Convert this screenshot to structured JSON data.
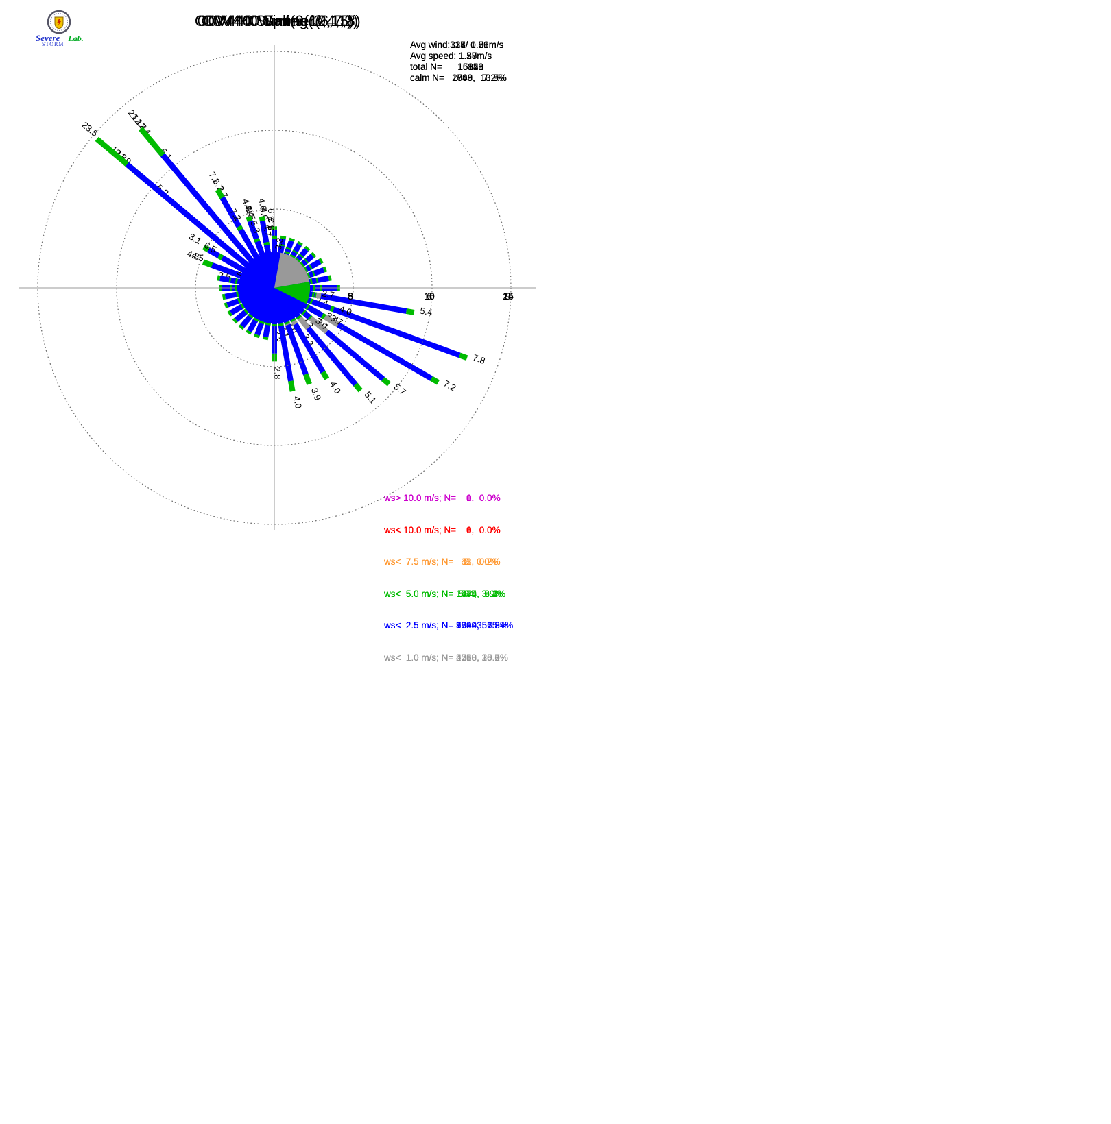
{
  "logo": {
    "name1": "Severe",
    "name2": "STORM",
    "name3": "Lab."
  },
  "colors": {
    "gt10": "#cc00cc",
    "lt10": "#ff0000",
    "lt75": "#ff9933",
    "lt5": "#00bb00",
    "lt25": "#0000ff",
    "lt1": "#999999",
    "axis": "#999999",
    "ring": "#777777"
  },
  "petal_columns": [
    "direction_deg",
    "len_ws_lt_1.0",
    "len_ws_lt_2.5",
    "len_ws_lt_5.0",
    "label_total_pct"
  ],
  "chart_data": [
    {
      "type": "windrose",
      "title": "C0V440 Spring(3,4,5)",
      "stats": {
        "avg_wind": "Avg wind:315/ 0.56m/s",
        "avg_speed": "Avg speed: 1.39m/s",
        "total_n": "total N=      16821",
        "calm_n": "calm N=   1769,  10.5%"
      },
      "axis_ticks": [
        5,
        10,
        15
      ],
      "axis_max": 15,
      "legend": [
        {
          "text": "ws> 10.0 m/s; N=    0,  0.0%",
          "color": "#cc00cc"
        },
        {
          "text": "ws< 10.0 m/s; N=    0,  0.0%",
          "color": "#ff0000"
        },
        {
          "text": "ws<  7.5 m/s; N=    5,  0.0%",
          "color": "#ff9933"
        },
        {
          "text": "ws<  5.0 m/s; N= 1039,  6.2%",
          "color": "#00bb00"
        },
        {
          "text": "ws<  2.5 m/s; N= 9740, 57.9%",
          "color": "#0000ff"
        },
        {
          "text": "ws<  1.0 m/s; N= 4268, 25.4%",
          "color": "#999999"
        }
      ],
      "category_pct": {
        "gray": 25.4,
        "blue": 57.9,
        "green": 6.2,
        "orange": 0.0
      },
      "petals": [
        [
          0,
          1.7,
          1.4,
          0.2,
          "3.3"
        ],
        [
          10,
          2.0,
          0.7,
          0.1,
          ""
        ],
        [
          20,
          2.0,
          0.6,
          0.1,
          ""
        ],
        [
          30,
          2.0,
          0.6,
          0.1,
          ""
        ],
        [
          40,
          2.0,
          0.6,
          0.1,
          ""
        ],
        [
          50,
          2.0,
          0.6,
          0.1,
          ""
        ],
        [
          60,
          2.0,
          0.6,
          0.1,
          ""
        ],
        [
          70,
          2.0,
          0.7,
          0.1,
          ""
        ],
        [
          80,
          2.0,
          0.8,
          0.1,
          ""
        ],
        [
          90,
          2.0,
          0.9,
          0.1,
          ""
        ],
        [
          100,
          2.0,
          0.9,
          0.1,
          ""
        ],
        [
          110,
          1.8,
          0.5,
          0.1,
          "2.4"
        ],
        [
          120,
          1.8,
          1.4,
          0.2,
          "3.4"
        ],
        [
          130,
          1.8,
          1.1,
          0.2,
          "3.1"
        ],
        [
          140,
          1.8,
          0.4,
          0.1,
          "2.3"
        ],
        [
          150,
          1.8,
          1.2,
          0.2,
          "3.2"
        ],
        [
          160,
          1.6,
          0.3,
          0.1,
          "2.0"
        ],
        [
          170,
          1.7,
          0.3,
          0.1,
          "2.1"
        ],
        [
          180,
          1.8,
          0.4,
          0.1,
          "2.3"
        ],
        [
          190,
          1.8,
          0.4,
          0.1,
          ""
        ],
        [
          200,
          1.8,
          0.3,
          0.1,
          ""
        ],
        [
          210,
          1.8,
          0.3,
          0.1,
          ""
        ],
        [
          220,
          1.8,
          0.3,
          0.1,
          ""
        ],
        [
          230,
          1.8,
          0.3,
          0.1,
          ""
        ],
        [
          240,
          1.8,
          0.3,
          0.1,
          ""
        ],
        [
          250,
          1.8,
          0.3,
          0.1,
          ""
        ],
        [
          260,
          1.8,
          0.4,
          0.1,
          ""
        ],
        [
          270,
          2.0,
          0.8,
          0.1,
          ""
        ],
        [
          280,
          1.9,
          0.4,
          0.2,
          "2.5"
        ],
        [
          290,
          1.5,
          2.9,
          0.4,
          "4.8"
        ],
        [
          300,
          2.0,
          0.7,
          0.1,
          ""
        ],
        [
          310,
          1.1,
          10.1,
          1.1,
          "12.3"
        ],
        [
          320,
          1.1,
          10.3,
          1.4,
          "12.8"
        ],
        [
          330,
          1.1,
          5.1,
          0.5,
          "6.7"
        ],
        [
          340,
          1.1,
          3.0,
          0.3,
          "4.4"
        ],
        [
          350,
          1.2,
          2.5,
          0.3,
          "4.0"
        ]
      ]
    },
    {
      "type": "windrose",
      "title": "C0V440 Summer(6,7,8)",
      "stats": {
        "avg_wind": "Avg wind:137/ 0.20m/s",
        "avg_speed": "Avg speed: 1.33m/s",
        "total_n": "total N=      16959",
        "calm_n": "calm N=   1846,  10.9%"
      },
      "axis_ticks": [
        3,
        6,
        9
      ],
      "axis_max": 9,
      "legend": [
        {
          "text": "ws> 10.0 m/s; N=    0,  0.0%",
          "color": "#cc00cc"
        },
        {
          "text": "ws< 10.0 m/s; N=    1,  0.0%",
          "color": "#ff0000"
        },
        {
          "text": "ws<  7.5 m/s; N=   41,  0.2%",
          "color": "#ff9933"
        },
        {
          "text": "ws<  5.0 m/s; N= 1074,  6.3%",
          "color": "#00bb00"
        },
        {
          "text": "ws<  2.5 m/s; N= 8784, 51.8%",
          "color": "#0000ff"
        },
        {
          "text": "ws<  1.0 m/s; N= 5213, 30.7%",
          "color": "#999999"
        }
      ],
      "category_pct": {
        "gray": 30.7,
        "blue": 51.8,
        "green": 6.3,
        "orange": 0.2
      },
      "petals": [
        [
          0,
          1.5,
          0.5,
          0.1,
          ""
        ],
        [
          10,
          1.5,
          0.4,
          0.1,
          ""
        ],
        [
          20,
          1.5,
          0.4,
          0.1,
          ""
        ],
        [
          30,
          1.5,
          0.4,
          0.1,
          ""
        ],
        [
          40,
          1.5,
          0.4,
          0.1,
          ""
        ],
        [
          50,
          1.5,
          0.4,
          0.1,
          ""
        ],
        [
          60,
          1.5,
          0.5,
          0.1,
          ""
        ],
        [
          70,
          1.5,
          0.5,
          0.1,
          ""
        ],
        [
          80,
          1.5,
          0.6,
          0.1,
          ""
        ],
        [
          90,
          1.5,
          0.9,
          0.1,
          ""
        ],
        [
          100,
          1.8,
          3.3,
          0.3,
          "5.4"
        ],
        [
          110,
          2.2,
          5.3,
          0.3,
          "7.8"
        ],
        [
          120,
          2.8,
          4.1,
          0.3,
          "7.2"
        ],
        [
          130,
          2.6,
          2.8,
          0.3,
          "5.7"
        ],
        [
          140,
          2.0,
          2.8,
          0.3,
          "5.1"
        ],
        [
          150,
          1.6,
          2.1,
          0.3,
          "4.0"
        ],
        [
          160,
          1.5,
          2.0,
          0.4,
          "3.9"
        ],
        [
          170,
          1.4,
          2.2,
          0.4,
          "4.0"
        ],
        [
          180,
          1.3,
          1.2,
          0.3,
          "2.8"
        ],
        [
          190,
          1.4,
          0.5,
          0.1,
          ""
        ],
        [
          200,
          1.4,
          0.5,
          0.1,
          ""
        ],
        [
          210,
          1.4,
          0.5,
          0.1,
          ""
        ],
        [
          220,
          1.4,
          0.5,
          0.1,
          ""
        ],
        [
          230,
          1.4,
          0.5,
          0.1,
          ""
        ],
        [
          240,
          1.4,
          0.5,
          0.1,
          ""
        ],
        [
          250,
          1.4,
          0.5,
          0.1,
          ""
        ],
        [
          260,
          1.4,
          0.5,
          0.1,
          ""
        ],
        [
          270,
          1.4,
          0.6,
          0.1,
          ""
        ],
        [
          280,
          1.4,
          0.7,
          0.1,
          ""
        ],
        [
          290,
          1.4,
          0.8,
          0.1,
          ""
        ],
        [
          300,
          1.2,
          1.7,
          0.2,
          "3.1"
        ],
        [
          310,
          1.1,
          3.6,
          0.5,
          "5.2"
        ],
        [
          320,
          1.1,
          4.5,
          0.5,
          "6.1"
        ],
        [
          330,
          1.1,
          2.4,
          0.2,
          "3.7"
        ],
        [
          340,
          1.2,
          1.2,
          0.1,
          "2.5"
        ],
        [
          350,
          1.4,
          0.6,
          0.1,
          ""
        ]
      ]
    },
    {
      "type": "windrose",
      "title": "C0V440 Fall(9,10,11)",
      "stats": {
        "avg_wind": "Avg wind:328/ 0.61m/s",
        "avg_speed": "Avg speed: 1.28m/s",
        "total_n": "total N=      15143",
        "calm_n": "calm N=   2040,  13.5%"
      },
      "axis_ticks": [
        5,
        10,
        15
      ],
      "axis_max": 15,
      "legend": [
        {
          "text": "ws> 10.0 m/s; N=    1,  0.0%",
          "color": "#cc00cc"
        },
        {
          "text": "ws< 10.0 m/s; N=    6,  0.0%",
          "color": "#ff0000"
        },
        {
          "text": "ws<  7.5 m/s; N=   33,  0.2%",
          "color": "#ff9933"
        },
        {
          "text": "ws<  5.0 m/s; N=  584,  3.9%",
          "color": "#00bb00"
        },
        {
          "text": "ws<  2.5 m/s; N= 7899, 52.2%",
          "color": "#0000ff"
        },
        {
          "text": "ws<  1.0 m/s; N= 4580, 30.2%",
          "color": "#999999"
        }
      ],
      "category_pct": {
        "gray": 30.2,
        "blue": 52.2,
        "green": 3.9,
        "orange": 0.2
      },
      "petals": [
        [
          0,
          1.7,
          2.0,
          0.2,
          "3.9"
        ],
        [
          10,
          2.0,
          0.7,
          0.1,
          ""
        ],
        [
          20,
          2.0,
          0.6,
          0.1,
          ""
        ],
        [
          30,
          2.0,
          0.6,
          0.1,
          ""
        ],
        [
          40,
          2.0,
          0.6,
          0.1,
          ""
        ],
        [
          50,
          2.0,
          0.6,
          0.1,
          ""
        ],
        [
          60,
          2.0,
          0.6,
          0.1,
          ""
        ],
        [
          70,
          2.0,
          0.6,
          0.1,
          ""
        ],
        [
          80,
          2.0,
          0.7,
          0.1,
          ""
        ],
        [
          90,
          2.0,
          0.9,
          0.1,
          ""
        ],
        [
          100,
          1.9,
          0.7,
          0.1,
          "2.7"
        ],
        [
          110,
          1.9,
          1.9,
          0.2,
          "4.0"
        ],
        [
          120,
          1.9,
          1.6,
          0.2,
          "3.7"
        ],
        [
          130,
          1.9,
          1.0,
          0.1,
          "3.0"
        ],
        [
          140,
          1.9,
          0.4,
          0.1,
          ""
        ],
        [
          150,
          1.9,
          0.4,
          0.1,
          ""
        ],
        [
          160,
          1.9,
          0.4,
          0.1,
          ""
        ],
        [
          170,
          1.9,
          0.4,
          0.1,
          ""
        ],
        [
          180,
          1.9,
          0.4,
          0.1,
          ""
        ],
        [
          190,
          1.9,
          0.4,
          0.1,
          ""
        ],
        [
          200,
          1.9,
          0.4,
          0.1,
          ""
        ],
        [
          210,
          1.9,
          0.4,
          0.1,
          ""
        ],
        [
          220,
          1.9,
          0.4,
          0.1,
          ""
        ],
        [
          230,
          1.9,
          0.4,
          0.1,
          ""
        ],
        [
          240,
          1.9,
          0.4,
          0.1,
          ""
        ],
        [
          250,
          1.9,
          0.4,
          0.1,
          ""
        ],
        [
          260,
          1.9,
          0.4,
          0.1,
          ""
        ],
        [
          270,
          2.0,
          0.7,
          0.1,
          ""
        ],
        [
          280,
          2.0,
          0.8,
          0.1,
          ""
        ],
        [
          290,
          1.4,
          2.8,
          0.3,
          "4.5"
        ],
        [
          300,
          2.0,
          0.7,
          0.1,
          ""
        ],
        [
          310,
          1.0,
          10.0,
          0.9,
          "11.9"
        ],
        [
          320,
          1.0,
          10.2,
          1.2,
          "12.4"
        ],
        [
          330,
          1.0,
          5.6,
          0.6,
          "7.2"
        ],
        [
          340,
          1.0,
          3.5,
          0.3,
          "4.8"
        ],
        [
          350,
          1.0,
          3.3,
          0.3,
          "4.6"
        ]
      ]
    },
    {
      "type": "windrose",
      "title": "C0V440 Winter(12,1,2)",
      "stats": {
        "avg_wind": "Avg wind:321/ 1.29m/s",
        "avg_speed": "Avg speed: 1.57m/s",
        "total_n": "total N=      15326",
        "calm_n": "calm N=   1098,   7.2%"
      },
      "axis_ticks": [
        8,
        16,
        24
      ],
      "axis_max": 24,
      "legend": [
        {
          "text": "ws> 10.0 m/s; N=    0,  0.0%",
          "color": "#cc00cc"
        },
        {
          "text": "ws< 10.0 m/s; N=    0,  0.0%",
          "color": "#ff0000"
        },
        {
          "text": "ws<  7.5 m/s; N=    2,  0.0%",
          "color": "#ff9933"
        },
        {
          "text": "ws<  5.0 m/s; N= 1445,  9.4%",
          "color": "#00bb00"
        },
        {
          "text": "ws<  2.5 m/s; N= 10023, 65.4%",
          "color": "#0000ff"
        },
        {
          "text": "ws<  1.0 m/s; N= 2758, 18.0%",
          "color": "#999999"
        }
      ],
      "category_pct": {
        "gray": 18.0,
        "blue": 65.4,
        "green": 9.4,
        "orange": 0.0
      },
      "petals": [
        [
          0,
          1.4,
          3.6,
          0.3,
          "5.3"
        ],
        [
          10,
          1.4,
          1.7,
          0.2,
          "3.3"
        ],
        [
          20,
          1.5,
          2.2,
          0.2,
          ""
        ],
        [
          30,
          1.5,
          2.1,
          0.2,
          ""
        ],
        [
          40,
          1.5,
          2.1,
          0.2,
          ""
        ],
        [
          50,
          1.5,
          2.1,
          0.2,
          ""
        ],
        [
          60,
          1.5,
          2.1,
          0.2,
          ""
        ],
        [
          70,
          1.5,
          2.1,
          0.2,
          ""
        ],
        [
          80,
          1.5,
          2.2,
          0.2,
          ""
        ],
        [
          90,
          1.5,
          2.4,
          0.2,
          ""
        ],
        [
          100,
          1.5,
          2.4,
          0.2,
          ""
        ],
        [
          110,
          1.5,
          2.4,
          0.2,
          ""
        ],
        [
          120,
          1.5,
          2.3,
          0.2,
          ""
        ],
        [
          130,
          1.5,
          2.3,
          0.2,
          ""
        ],
        [
          140,
          1.5,
          2.3,
          0.2,
          ""
        ],
        [
          150,
          1.5,
          2.2,
          0.2,
          ""
        ],
        [
          160,
          1.5,
          2.2,
          0.2,
          ""
        ],
        [
          170,
          1.5,
          2.2,
          0.2,
          ""
        ],
        [
          180,
          1.5,
          2.2,
          0.2,
          ""
        ],
        [
          190,
          1.5,
          2.1,
          0.2,
          ""
        ],
        [
          200,
          1.5,
          2.1,
          0.2,
          ""
        ],
        [
          210,
          1.5,
          2.1,
          0.2,
          ""
        ],
        [
          220,
          1.5,
          2.1,
          0.2,
          ""
        ],
        [
          230,
          1.5,
          2.1,
          0.2,
          ""
        ],
        [
          240,
          1.5,
          2.1,
          0.2,
          ""
        ],
        [
          250,
          1.5,
          2.2,
          0.2,
          ""
        ],
        [
          260,
          1.5,
          2.2,
          0.2,
          ""
        ],
        [
          270,
          1.5,
          2.3,
          0.2,
          ""
        ],
        [
          280,
          1.5,
          2.3,
          0.2,
          ""
        ],
        [
          290,
          1.2,
          1.0,
          0.1,
          "2.3"
        ],
        [
          300,
          1.2,
          4.9,
          0.4,
          "6.5"
        ],
        [
          310,
          1.2,
          18.3,
          4.0,
          "23.5"
        ],
        [
          320,
          1.2,
          16.4,
          3.5,
          "21.1"
        ],
        [
          330,
          1.2,
          5.6,
          0.4,
          "7.2"
        ],
        [
          340,
          1.2,
          3.8,
          0.3,
          "5.3"
        ],
        [
          350,
          1.2,
          3.2,
          0.3,
          "4.7"
        ]
      ]
    }
  ]
}
